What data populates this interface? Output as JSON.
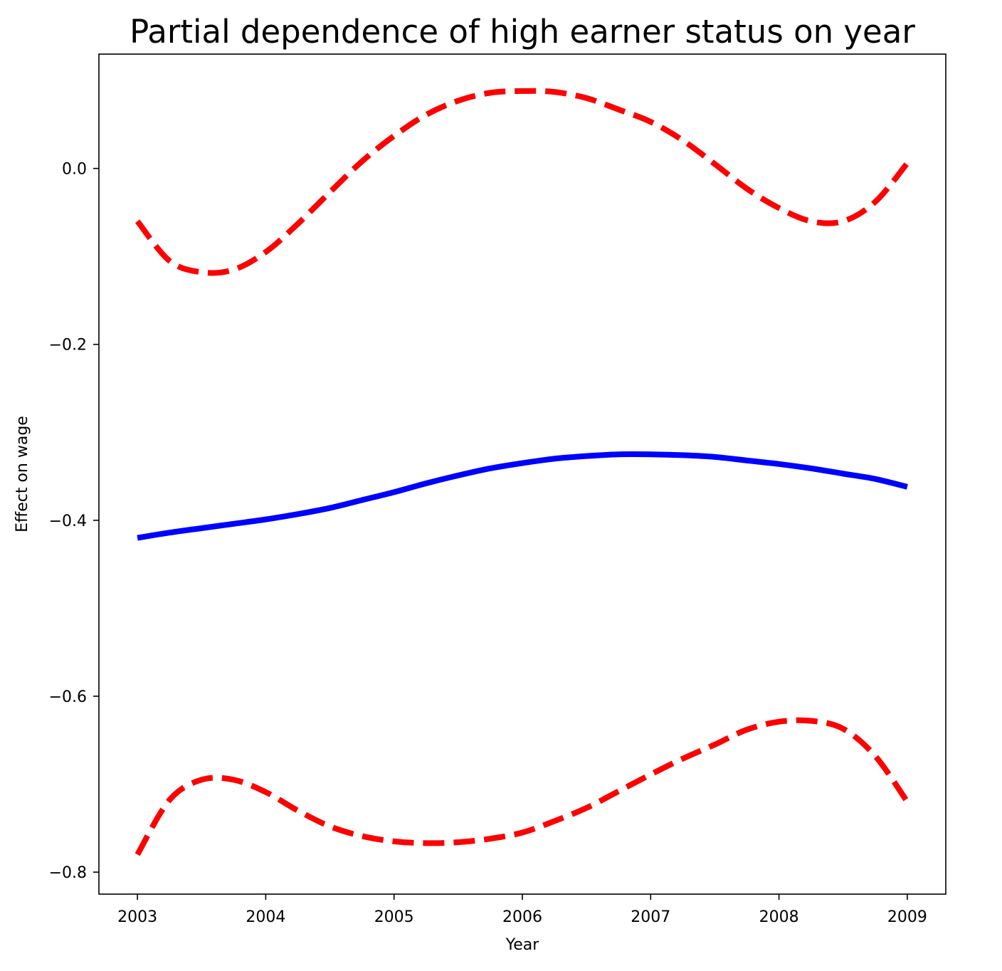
{
  "chart_data": {
    "type": "line",
    "title": "Partial dependence of high earner status on year",
    "xlabel": "Year",
    "ylabel": "Effect on wage",
    "xlim": [
      2002.7,
      2009.3
    ],
    "ylim": [
      -0.825,
      0.13
    ],
    "xticks": [
      2003,
      2004,
      2005,
      2006,
      2007,
      2008,
      2009
    ],
    "xtick_labels": [
      "2003",
      "2004",
      "2005",
      "2006",
      "2007",
      "2008",
      "2009"
    ],
    "yticks": [
      0.0,
      -0.2,
      -0.4,
      -0.6,
      -0.8
    ],
    "ytick_labels": [
      "0.0",
      "−0.2",
      "−0.4",
      "−0.6",
      "−0.8"
    ],
    "grid": false,
    "x": [
      2003.0,
      2003.25,
      2003.5,
      2003.75,
      2004.0,
      2004.25,
      2004.5,
      2004.75,
      2005.0,
      2005.25,
      2005.5,
      2005.75,
      2006.0,
      2006.25,
      2006.5,
      2006.75,
      2007.0,
      2007.25,
      2007.5,
      2007.75,
      2008.0,
      2008.25,
      2008.5,
      2008.75,
      2009.0
    ],
    "series": [
      {
        "style": "solid",
        "color": "#0000ff",
        "values": [
          -0.42,
          -0.414,
          -0.409,
          -0.404,
          -0.399,
          -0.393,
          -0.386,
          -0.377,
          -0.368,
          -0.358,
          -0.349,
          -0.341,
          -0.335,
          -0.33,
          -0.327,
          -0.325,
          -0.325,
          -0.326,
          -0.328,
          -0.332,
          -0.336,
          -0.341,
          -0.347,
          -0.353,
          -0.362
        ]
      },
      {
        "style": "dashed",
        "color": "#ff0000",
        "values": [
          -0.06,
          -0.105,
          -0.118,
          -0.115,
          -0.095,
          -0.063,
          -0.027,
          0.008,
          0.037,
          0.061,
          0.077,
          0.086,
          0.088,
          0.087,
          0.08,
          0.067,
          0.053,
          0.032,
          0.005,
          -0.023,
          -0.045,
          -0.06,
          -0.06,
          -0.038,
          0.006
        ]
      },
      {
        "style": "dashed",
        "color": "#ff0000",
        "values": [
          -0.78,
          -0.718,
          -0.695,
          -0.695,
          -0.709,
          -0.73,
          -0.748,
          -0.759,
          -0.765,
          -0.767,
          -0.766,
          -0.762,
          -0.755,
          -0.742,
          -0.727,
          -0.708,
          -0.689,
          -0.671,
          -0.655,
          -0.638,
          -0.629,
          -0.628,
          -0.637,
          -0.668,
          -0.72
        ]
      }
    ]
  }
}
